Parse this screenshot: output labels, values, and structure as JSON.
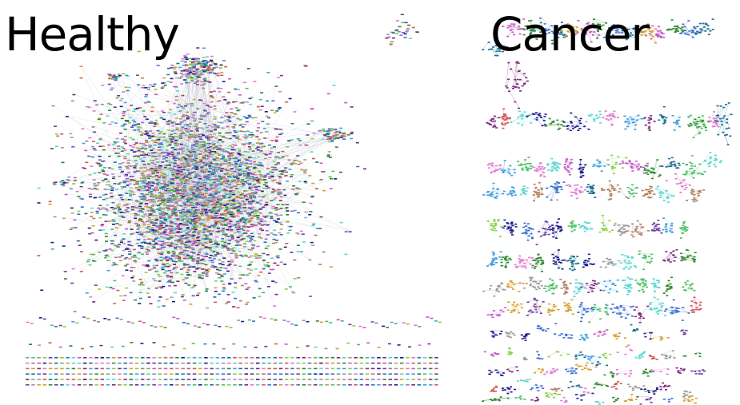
{
  "panels": {
    "healthy": {
      "title": "Healthy"
    },
    "cancer": {
      "title": "Cancer"
    }
  },
  "palette": [
    "#3a6fd1",
    "#c45ac9",
    "#2e8b2e",
    "#e07ad0",
    "#5bd6d0",
    "#1c1c8c",
    "#d4a030",
    "#7a2a7a",
    "#4fc06a",
    "#9a9a9a",
    "#1a6f8f",
    "#d05a5a",
    "#8ad04a",
    "#6a3fa0",
    "#40a0e0",
    "#b08060"
  ],
  "edge_color": "#b8bcc4"
}
